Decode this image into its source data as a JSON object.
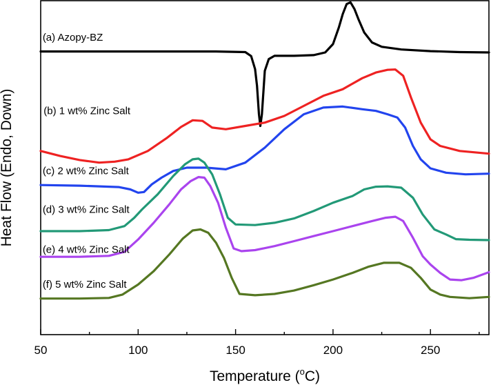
{
  "chart_data": {
    "type": "line",
    "title": "",
    "xlabel": "Temperature (",
    "xlabel_unit": "C)",
    "xlabel_degree": "o",
    "ylabel": "Heat Flow (Endo, Down)",
    "xlim": [
      50,
      280
    ],
    "ylim": [
      0,
      100
    ],
    "yticks_shown": false,
    "xticks": [
      50,
      100,
      150,
      200,
      250
    ],
    "series": [
      {
        "name": "(a) Azopy-BZ",
        "color": "#000000",
        "points": [
          [
            50,
            84.8
          ],
          [
            100,
            84.8
          ],
          [
            140,
            84.8
          ],
          [
            155,
            84.6
          ],
          [
            158,
            83.4
          ],
          [
            160,
            79.5
          ],
          [
            161,
            74.5
          ],
          [
            162,
            66.0
          ],
          [
            162.7,
            62.5
          ],
          [
            163.5,
            66.0
          ],
          [
            165,
            79.0
          ],
          [
            167,
            82.5
          ],
          [
            170,
            83.5
          ],
          [
            180,
            83.5
          ],
          [
            190,
            83.7
          ],
          [
            196,
            84.5
          ],
          [
            200,
            87.0
          ],
          [
            203,
            92.0
          ],
          [
            205,
            96.0
          ],
          [
            207,
            99.0
          ],
          [
            209,
            99.5
          ],
          [
            211,
            97.5
          ],
          [
            213,
            94.5
          ],
          [
            216,
            90.5
          ],
          [
            220,
            87.5
          ],
          [
            225,
            86.2
          ],
          [
            235,
            85.4
          ],
          [
            250,
            84.9
          ],
          [
            265,
            84.6
          ],
          [
            280,
            84.5
          ]
        ]
      },
      {
        "name": "(b) 1 wt% Zinc Salt",
        "color": "#ee2222",
        "points": [
          [
            50,
            55.0
          ],
          [
            60,
            53.5
          ],
          [
            70,
            52.3
          ],
          [
            80,
            51.5
          ],
          [
            88,
            51.8
          ],
          [
            95,
            52.5
          ],
          [
            105,
            55.0
          ],
          [
            115,
            59.0
          ],
          [
            122,
            62.2
          ],
          [
            128,
            64.2
          ],
          [
            133,
            64.0
          ],
          [
            138,
            62.0
          ],
          [
            145,
            61.5
          ],
          [
            155,
            62.5
          ],
          [
            165,
            63.5
          ],
          [
            175,
            65.5
          ],
          [
            185,
            68.5
          ],
          [
            195,
            71.5
          ],
          [
            205,
            73.5
          ],
          [
            215,
            76.8
          ],
          [
            222,
            78.5
          ],
          [
            228,
            79.3
          ],
          [
            232,
            79.4
          ],
          [
            236,
            77.5
          ],
          [
            240,
            71.0
          ],
          [
            245,
            63.5
          ],
          [
            250,
            58.5
          ],
          [
            255,
            56.5
          ],
          [
            265,
            55.0
          ],
          [
            280,
            54.2
          ]
        ]
      },
      {
        "name": "(c) 2 wt% Zinc Salt",
        "color": "#2244ee",
        "points": [
          [
            50,
            44.8
          ],
          [
            70,
            44.6
          ],
          [
            90,
            44.2
          ],
          [
            96,
            43.5
          ],
          [
            100,
            42.5
          ],
          [
            103,
            42.7
          ],
          [
            107,
            45.0
          ],
          [
            112,
            47.0
          ],
          [
            118,
            49.0
          ],
          [
            125,
            50.0
          ],
          [
            135,
            50.0
          ],
          [
            145,
            49.5
          ],
          [
            155,
            51.5
          ],
          [
            165,
            56.0
          ],
          [
            175,
            61.5
          ],
          [
            185,
            66.0
          ],
          [
            195,
            68.0
          ],
          [
            205,
            68.3
          ],
          [
            215,
            67.5
          ],
          [
            222,
            67.0
          ],
          [
            228,
            66.0
          ],
          [
            233,
            65.0
          ],
          [
            237,
            62.0
          ],
          [
            241,
            56.5
          ],
          [
            245,
            52.5
          ],
          [
            250,
            49.8
          ],
          [
            258,
            48.5
          ],
          [
            268,
            48.0
          ],
          [
            280,
            48.2
          ]
        ]
      },
      {
        "name": "(d) 3 wt% Zinc Salt",
        "color": "#229977",
        "points": [
          [
            50,
            31.0
          ],
          [
            70,
            31.0
          ],
          [
            85,
            31.3
          ],
          [
            93,
            32.5
          ],
          [
            98,
            35.0
          ],
          [
            102,
            37.5
          ],
          [
            110,
            42.0
          ],
          [
            118,
            47.5
          ],
          [
            124,
            51.0
          ],
          [
            128,
            52.5
          ],
          [
            131,
            52.7
          ],
          [
            134,
            51.5
          ],
          [
            138,
            48.0
          ],
          [
            142,
            42.0
          ],
          [
            146,
            35.0
          ],
          [
            150,
            33.0
          ],
          [
            160,
            32.8
          ],
          [
            170,
            33.5
          ],
          [
            180,
            34.8
          ],
          [
            190,
            37.0
          ],
          [
            200,
            39.5
          ],
          [
            210,
            41.5
          ],
          [
            216,
            43.5
          ],
          [
            222,
            44.3
          ],
          [
            228,
            44.4
          ],
          [
            235,
            44.0
          ],
          [
            241,
            41.0
          ],
          [
            246,
            36.0
          ],
          [
            252,
            31.5
          ],
          [
            258,
            30.0
          ],
          [
            263,
            28.6
          ],
          [
            270,
            28.4
          ],
          [
            280,
            28.3
          ]
        ]
      },
      {
        "name": "(e) 4 wt% Zinc Salt",
        "color": "#aa44ee",
        "points": [
          [
            50,
            23.3
          ],
          [
            70,
            23.3
          ],
          [
            85,
            23.6
          ],
          [
            93,
            24.8
          ],
          [
            100,
            28.5
          ],
          [
            108,
            33.5
          ],
          [
            116,
            39.0
          ],
          [
            122,
            43.5
          ],
          [
            127,
            46.0
          ],
          [
            131,
            47.2
          ],
          [
            134,
            47.0
          ],
          [
            137,
            44.5
          ],
          [
            141,
            39.5
          ],
          [
            145,
            32.0
          ],
          [
            149,
            25.8
          ],
          [
            153,
            25.0
          ],
          [
            160,
            25.3
          ],
          [
            170,
            26.5
          ],
          [
            180,
            28.0
          ],
          [
            190,
            29.5
          ],
          [
            200,
            31.0
          ],
          [
            210,
            32.5
          ],
          [
            220,
            34.0
          ],
          [
            227,
            35.0
          ],
          [
            232,
            35.3
          ],
          [
            236,
            34.0
          ],
          [
            241,
            29.0
          ],
          [
            246,
            23.5
          ],
          [
            250,
            21.0
          ],
          [
            255,
            18.5
          ],
          [
            260,
            16.5
          ],
          [
            266,
            16.3
          ],
          [
            272,
            17.0
          ],
          [
            280,
            18.7
          ]
        ]
      },
      {
        "name": "(f) 5 wt% Zinc Salt",
        "color": "#557722",
        "points": [
          [
            50,
            10.8
          ],
          [
            70,
            10.8
          ],
          [
            85,
            11.0
          ],
          [
            92,
            12.0
          ],
          [
            100,
            15.0
          ],
          [
            108,
            19.0
          ],
          [
            116,
            24.0
          ],
          [
            123,
            28.8
          ],
          [
            128,
            31.2
          ],
          [
            132,
            31.5
          ],
          [
            136,
            30.5
          ],
          [
            140,
            27.5
          ],
          [
            144,
            23.0
          ],
          [
            148,
            17.0
          ],
          [
            152,
            12.2
          ],
          [
            160,
            11.8
          ],
          [
            170,
            12.2
          ],
          [
            180,
            13.2
          ],
          [
            190,
            14.8
          ],
          [
            200,
            16.5
          ],
          [
            210,
            18.5
          ],
          [
            218,
            20.3
          ],
          [
            226,
            21.5
          ],
          [
            234,
            21.5
          ],
          [
            240,
            20.0
          ],
          [
            245,
            17.0
          ],
          [
            250,
            13.5
          ],
          [
            255,
            12.0
          ],
          [
            260,
            11.3
          ],
          [
            270,
            10.9
          ],
          [
            280,
            11.3
          ]
        ]
      }
    ],
    "series_labels": [
      {
        "text": "(a) Azopy-BZ",
        "x": 51.0,
        "y": 88.0
      },
      {
        "text": "(b) 1 wt% Zinc Salt",
        "x": 51.5,
        "y": 66.0
      },
      {
        "text": "(c) 2 wt% Zinc Salt",
        "x": 51.0,
        "y": 48.0
      },
      {
        "text": "(d) 3 wt% Zinc Salt",
        "x": 51.0,
        "y": 36.5
      },
      {
        "text": "(e) 4 wt% Zinc Salt",
        "x": 51.0,
        "y": 24.5
      },
      {
        "text": "(f) 5 wt% Zinc Salt",
        "x": 51.0,
        "y": 14.0
      }
    ]
  }
}
